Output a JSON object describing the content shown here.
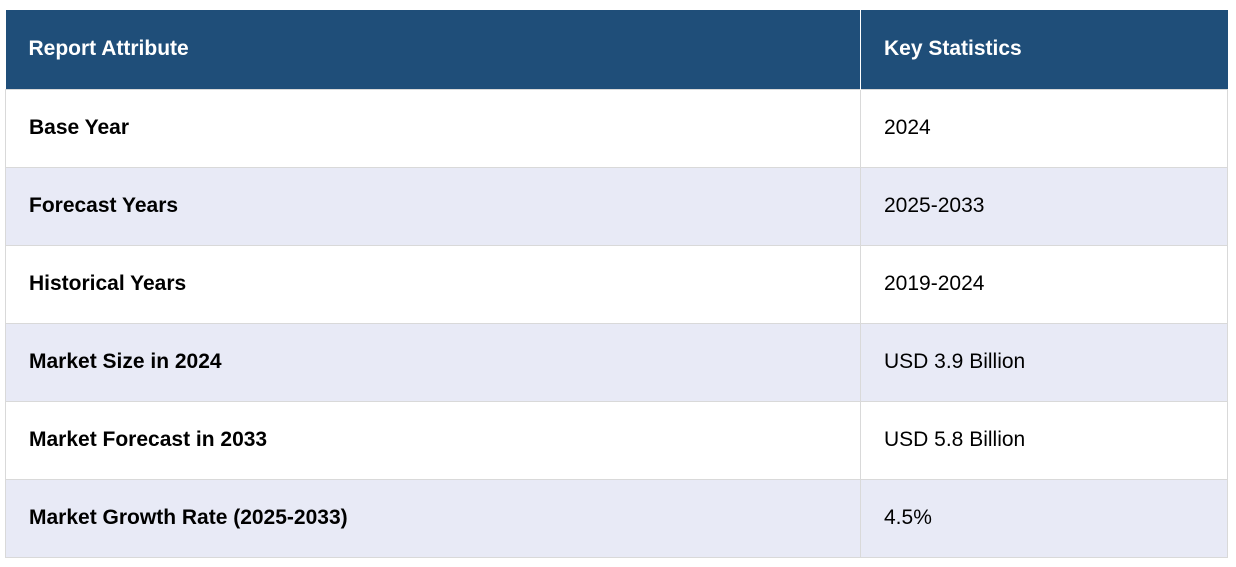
{
  "table": {
    "headers": [
      "Report Attribute",
      "Key Statistics"
    ],
    "rows": [
      {
        "attribute": "Base Year",
        "value": "2024"
      },
      {
        "attribute": "Forecast Years",
        "value": "2025-2033"
      },
      {
        "attribute": "Historical Years",
        "value": "2019-2024"
      },
      {
        "attribute": "Market Size in 2024",
        "value": "USD 3.9 Billion"
      },
      {
        "attribute": "Market Forecast in 2033",
        "value": "USD 5.8 Billion"
      },
      {
        "attribute": "Market Growth Rate (2025-2033)",
        "value": "4.5%"
      }
    ]
  },
  "colors": {
    "header_bg": "#1f4e79",
    "header_text": "#ffffff",
    "row_alt_bg": "#e8eaf6",
    "border": "#d9d9d9"
  }
}
